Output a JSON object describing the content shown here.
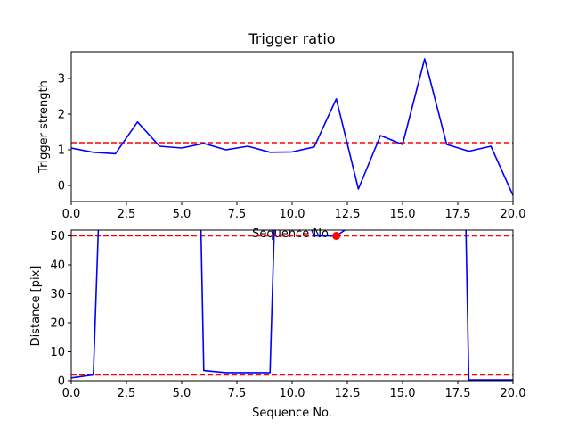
{
  "chart_data": [
    {
      "type": "line",
      "title": "Trigger ratio",
      "xlabel": "Sequence No.",
      "ylabel": "Trigger strength",
      "xlim": [
        0,
        20
      ],
      "ylim": [
        -0.45,
        3.75
      ],
      "xticks": [
        0.0,
        2.5,
        5.0,
        7.5,
        10.0,
        12.5,
        15.0,
        17.5,
        20.0
      ],
      "xtick_labels": [
        "0.0",
        "2.5",
        "5.0",
        "7.5",
        "10.0",
        "12.5",
        "15.0",
        "17.5",
        "20.0"
      ],
      "yticks": [
        0,
        1,
        2,
        3
      ],
      "ytick_labels": [
        "0",
        "1",
        "2",
        "3"
      ],
      "grid": false,
      "series": [
        {
          "color": "#0000ff",
          "x": [
            0,
            1,
            2,
            3,
            4,
            5,
            6,
            7,
            8,
            9,
            10,
            11,
            12,
            13,
            14,
            15,
            16,
            17,
            18,
            19,
            20
          ],
          "y": [
            1.05,
            0.93,
            0.89,
            1.78,
            1.1,
            1.05,
            1.18,
            1.0,
            1.1,
            0.93,
            0.94,
            1.08,
            2.43,
            -0.1,
            1.4,
            1.15,
            3.55,
            1.15,
            0.96,
            1.1,
            -0.28
          ]
        }
      ],
      "hlines": [
        {
          "y": 1.2,
          "color": "#ff0000",
          "style": "dashed"
        }
      ]
    },
    {
      "type": "line",
      "title": "",
      "xlabel": "Sequence No.",
      "ylabel": "Distance [pix]",
      "xlim": [
        0,
        20
      ],
      "ylim": [
        0,
        52
      ],
      "xticks": [
        0.0,
        2.5,
        5.0,
        7.5,
        10.0,
        12.5,
        15.0,
        17.5,
        20.0
      ],
      "xtick_labels": [
        "0.0",
        "2.5",
        "5.0",
        "7.5",
        "10.0",
        "12.5",
        "15.0",
        "17.5",
        "20.0"
      ],
      "yticks": [
        0,
        10,
        20,
        30,
        40,
        50
      ],
      "ytick_labels": [
        "0",
        "10",
        "20",
        "30",
        "40",
        "50"
      ],
      "grid": false,
      "series": [
        {
          "color": "#0000ff",
          "x": [
            0,
            1,
            1.35,
            5.8,
            6,
            7,
            8,
            9,
            9.3,
            11,
            12,
            17.8,
            18,
            19,
            20
          ],
          "y": [
            1.0,
            2.0,
            80,
            80,
            3.5,
            2.8,
            2.8,
            2.8,
            80,
            50.0,
            50.0,
            80,
            0.3,
            0.3,
            0.3
          ]
        }
      ],
      "hlines": [
        {
          "y": 50,
          "color": "#ff0000",
          "style": "dashed"
        },
        {
          "y": 2,
          "color": "#ff0000",
          "style": "dashed"
        }
      ],
      "markers": [
        {
          "x": 12,
          "y": 50,
          "color": "#ff0000"
        }
      ]
    }
  ]
}
